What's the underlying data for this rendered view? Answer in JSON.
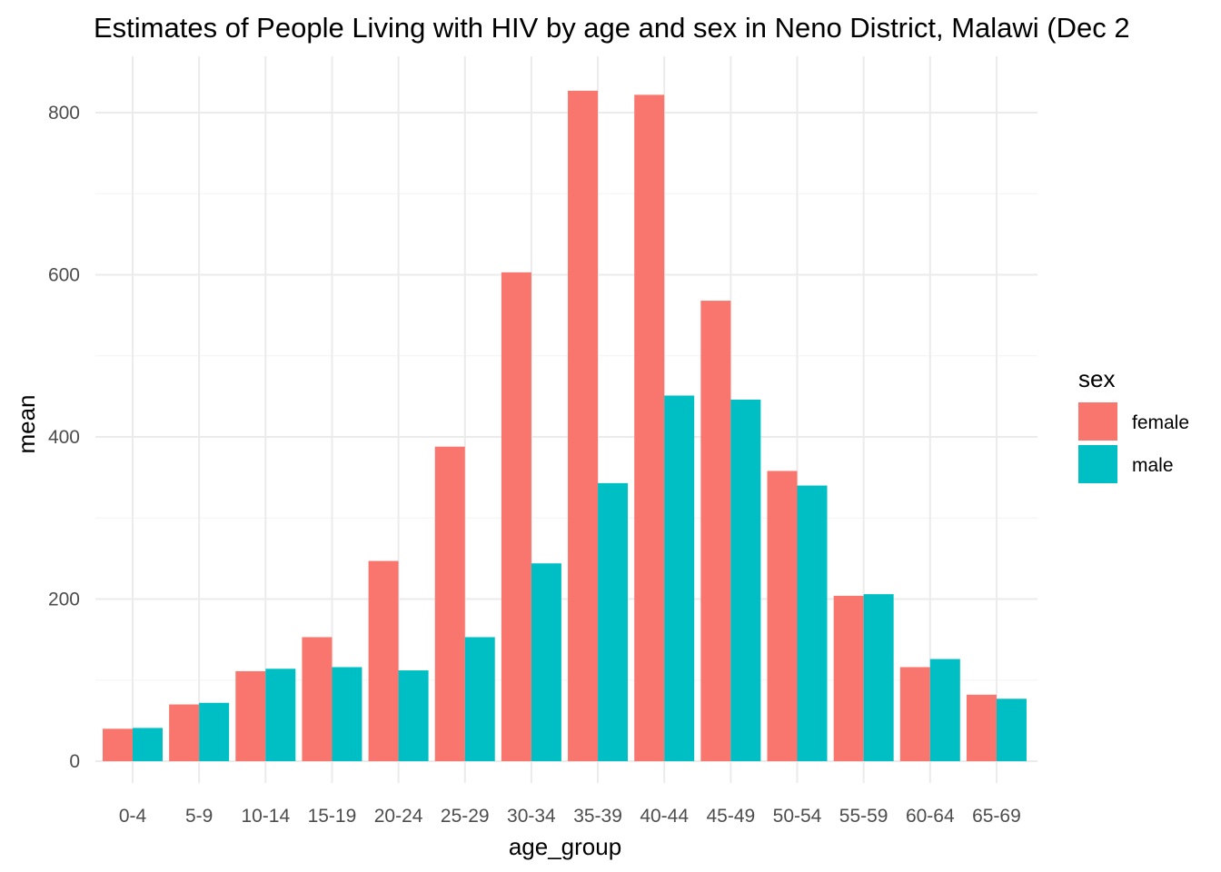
{
  "chart_data": {
    "type": "bar",
    "title": "Estimates of People Living with HIV by age and sex in Neno District, Malawi (Dec 2",
    "xlabel": "age_group",
    "ylabel": "mean",
    "ylim": [
      0,
      850
    ],
    "yticks": [
      0,
      200,
      400,
      600,
      800
    ],
    "grid": true,
    "legend_title": "sex",
    "legend_position": "right",
    "categories": [
      "0-4",
      "5-9",
      "10-14",
      "15-19",
      "20-24",
      "25-29",
      "30-34",
      "35-39",
      "40-44",
      "45-49",
      "50-54",
      "55-59",
      "60-64",
      "65-69"
    ],
    "series": [
      {
        "name": "female",
        "color": "#F8766D",
        "values": [
          40,
          70,
          111,
          153,
          247,
          388,
          603,
          827,
          822,
          568,
          358,
          204,
          116,
          82
        ]
      },
      {
        "name": "male",
        "color": "#00BFC4",
        "values": [
          41,
          72,
          114,
          116,
          112,
          153,
          244,
          343,
          451,
          446,
          340,
          206,
          126,
          77
        ]
      }
    ]
  }
}
